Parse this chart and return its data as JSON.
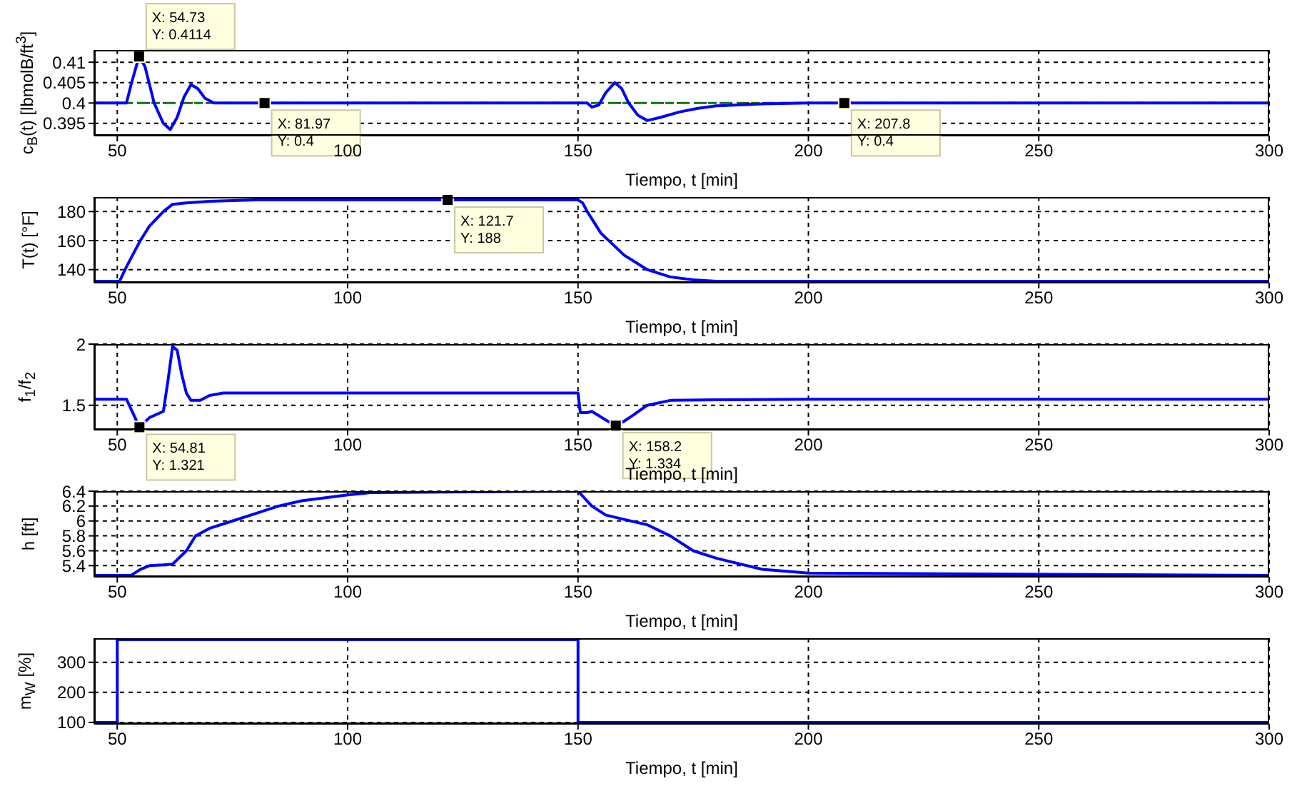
{
  "chart_data": [
    {
      "type": "line",
      "xlabel": "Tiempo, t [min]",
      "ylabel": "c$_{B}$(t) [lbmolB/ft$^{3}$]",
      "xlim": [
        45,
        300
      ],
      "xticks": [
        50,
        100,
        150,
        200,
        250,
        300
      ],
      "ylim": [
        0.392,
        0.413
      ],
      "yticks": [
        0.395,
        0.4,
        0.405,
        0.41
      ],
      "grid": true,
      "line_style": "solid",
      "marker": "none",
      "x": [
        45,
        52,
        53,
        54.73,
        56,
        58,
        60,
        61.5,
        63,
        64.5,
        66,
        67.5,
        69,
        71,
        75,
        80,
        100,
        150,
        152,
        153,
        154.5,
        156,
        158,
        159.5,
        161,
        163,
        165,
        168,
        172,
        176,
        180,
        190,
        200,
        300
      ],
      "series": [
        {
          "color": "#0000ff",
          "values": [
            0.4,
            0.4,
            0.4045,
            0.4114,
            0.409,
            0.4,
            0.395,
            0.3935,
            0.3965,
            0.4015,
            0.4045,
            0.4035,
            0.4012,
            0.4,
            0.4,
            0.4,
            0.4,
            0.4,
            0.4,
            0.399,
            0.3995,
            0.4025,
            0.405,
            0.4035,
            0.4,
            0.397,
            0.3957,
            0.3965,
            0.3978,
            0.3987,
            0.3993,
            0.3998,
            0.4,
            0.4
          ]
        }
      ],
      "ref_lines": [
        {
          "axis": "y",
          "value": 0.4,
          "color": "#008000",
          "line_style": "dashed"
        }
      ],
      "annotations": [
        {
          "text": "X: 54.73\nY: 0.4114",
          "x": 54.73,
          "y": 0.4114
        },
        {
          "text": "X: 81.97\nY: 0.4",
          "x": 81.97,
          "y": 0.4
        },
        {
          "text": "X: 207.8\nY: 0.4",
          "x": 207.8,
          "y": 0.4
        }
      ]
    },
    {
      "type": "line",
      "xlabel": "Tiempo, t [min]",
      "ylabel": "T(t) [°F]",
      "xlim": [
        45,
        300
      ],
      "xticks": [
        50,
        100,
        150,
        200,
        250,
        300
      ],
      "ylim": [
        131,
        190
      ],
      "yticks": [
        140,
        160,
        180
      ],
      "grid": true,
      "line_style": "solid",
      "marker": "none",
      "x": [
        45,
        50.5,
        52,
        55,
        57,
        60,
        62,
        65,
        70,
        80,
        150,
        151,
        152,
        155,
        158,
        160,
        163,
        165,
        170,
        175,
        180,
        190,
        300
      ],
      "series": [
        {
          "color": "#0000ff",
          "values": [
            132,
            132,
            142,
            160,
            170,
            180,
            185,
            186,
            187,
            188,
            188,
            186,
            180,
            165,
            156,
            150,
            144,
            140,
            135,
            133,
            132,
            132,
            132
          ]
        }
      ],
      "annotations": [
        {
          "text": "X: 121.7\nY: 188",
          "x": 121.7,
          "y": 188
        }
      ]
    },
    {
      "type": "line",
      "xlabel": "Tiempo, t [min]",
      "ylabel": "f$_{1}$/f$_{2}$",
      "xlim": [
        45,
        300
      ],
      "xticks": [
        50,
        100,
        150,
        200,
        250,
        300
      ],
      "ylim": [
        1.3,
        2
      ],
      "yticks": [
        1.5,
        2
      ],
      "grid": true,
      "line_style": "solid",
      "marker": "none",
      "x": [
        45,
        52,
        54.81,
        57,
        60,
        61,
        62,
        63,
        64,
        65,
        66,
        68,
        70,
        73,
        75,
        150,
        150.5,
        152,
        153,
        156,
        158.2,
        160,
        162,
        165,
        170,
        180,
        200,
        300
      ],
      "series": [
        {
          "color": "#0000ff",
          "values": [
            1.55,
            1.55,
            1.321,
            1.4,
            1.45,
            1.7,
            1.98,
            1.95,
            1.75,
            1.6,
            1.54,
            1.54,
            1.58,
            1.6,
            1.6,
            1.6,
            1.44,
            1.44,
            1.45,
            1.38,
            1.334,
            1.37,
            1.42,
            1.5,
            1.54,
            1.545,
            1.55,
            1.55
          ]
        }
      ],
      "annotations": [
        {
          "text": "X: 54.81\nY: 1.321",
          "x": 54.81,
          "y": 1.321
        },
        {
          "text": "X: 158.2\nY: 1.334",
          "x": 158.2,
          "y": 1.334
        }
      ]
    },
    {
      "type": "line",
      "xlabel": "Tiempo, t [min]",
      "ylabel": "h [ft]",
      "xlim": [
        45,
        300
      ],
      "xticks": [
        50,
        100,
        150,
        200,
        250,
        300
      ],
      "ylim": [
        5.25,
        6.4
      ],
      "yticks": [
        5.4,
        5.6,
        5.8,
        6,
        6.2,
        6.4
      ],
      "grid": true,
      "line_style": "solid",
      "marker": "none",
      "x": [
        45,
        53,
        55,
        57,
        60,
        62,
        65,
        67,
        70,
        75,
        80,
        85,
        90,
        100,
        105,
        150,
        153,
        156,
        160,
        165,
        170,
        175,
        180,
        190,
        200,
        300
      ],
      "series": [
        {
          "color": "#0000ff",
          "values": [
            5.27,
            5.27,
            5.35,
            5.4,
            5.41,
            5.42,
            5.6,
            5.8,
            5.9,
            6,
            6.1,
            6.2,
            6.27,
            6.35,
            6.38,
            6.4,
            6.2,
            6.08,
            6.02,
            5.95,
            5.8,
            5.6,
            5.5,
            5.35,
            5.3,
            5.27
          ]
        }
      ]
    },
    {
      "type": "step",
      "xlabel": "Tiempo, t [min]",
      "ylabel": "m$_{W}$ [%]",
      "xlim": [
        45,
        300
      ],
      "xticks": [
        50,
        100,
        150,
        200,
        250,
        300
      ],
      "ylim": [
        95,
        380
      ],
      "yticks": [
        100,
        200,
        300
      ],
      "grid": true,
      "line_style": "solid",
      "marker": "none",
      "x": [
        45,
        50,
        150,
        300
      ],
      "series": [
        {
          "color": "#0000ff",
          "values": [
            100,
            375,
            100,
            100
          ]
        }
      ]
    }
  ]
}
